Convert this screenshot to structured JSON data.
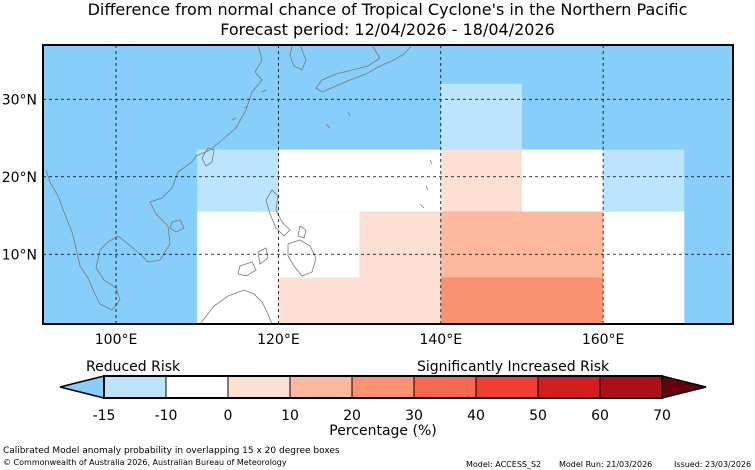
{
  "title_line1": "Difference from normal chance of Tropical Cyclone's in the Northern Pacific",
  "title_line2": "Forecast period: 12/04/2026 - 18/04/2026",
  "map": {
    "lon_range": [
      91,
      176
    ],
    "lat_range": [
      1,
      37
    ],
    "lon_ticks": [
      "100°E",
      "120°E",
      "140°E",
      "160°E"
    ],
    "lat_ticks": [
      "30°N",
      "20°N",
      "10°N"
    ],
    "ocean_color": "#87CEFA",
    "cells": [
      {
        "lon0": 140,
        "lon1": 150,
        "lat0": 23.5,
        "lat1": 32,
        "category": "-15 to -10",
        "color": "#BCE4FD"
      },
      {
        "lon0": 110,
        "lon1": 120,
        "lat0": 15.5,
        "lat1": 23.5,
        "category": "-15 to -10",
        "color": "#BCE4FD"
      },
      {
        "lon0": 160,
        "lon1": 170,
        "lat0": 15.5,
        "lat1": 23.5,
        "category": "-15 to -10",
        "color": "#BCE4FD"
      },
      {
        "lon0": 120,
        "lon1": 140,
        "lat0": 15.5,
        "lat1": 23.5,
        "category": "-10 to 0",
        "color": "#FFFFFF"
      },
      {
        "lon0": 150,
        "lon1": 160,
        "lat0": 15.5,
        "lat1": 23.5,
        "category": "-10 to 0",
        "color": "#FFFFFF"
      },
      {
        "lon0": 110,
        "lon1": 130,
        "lat0": 1,
        "lat1": 15.5,
        "category": "-10 to 0",
        "color": "#FFFFFF"
      },
      {
        "lon0": 130,
        "lon1": 140,
        "lat0": 7,
        "lat1": 15.5,
        "category": "0 to 10",
        "color": "#FEDFD4"
      },
      {
        "lon0": 160,
        "lon1": 170,
        "lat0": 1,
        "lat1": 15.5,
        "category": "-10 to 0",
        "color": "#FFFFFF"
      },
      {
        "lon0": 140,
        "lon1": 150,
        "lat0": 15.5,
        "lat1": 23.5,
        "category": "0 to 10",
        "color": "#FEDFD4"
      },
      {
        "lon0": 120,
        "lon1": 140,
        "lat0": 1,
        "lat1": 7,
        "category": "0 to 10",
        "color": "#FEDFD4"
      },
      {
        "lon0": 140,
        "lon1": 160,
        "lat0": 7,
        "lat1": 15.5,
        "category": "10 to 20",
        "color": "#FCB99E"
      },
      {
        "lon0": 140,
        "lon1": 160,
        "lat0": 1,
        "lat1": 7,
        "category": "20 to 30",
        "color": "#FB9272"
      }
    ]
  },
  "colorbar": {
    "reduced_label": "Reduced Risk",
    "increased_label": "Significantly Increased Risk",
    "xlabel": "Percentage (%)",
    "ticks": [
      "-15",
      "-10",
      "0",
      "10",
      "20",
      "30",
      "40",
      "50",
      "60",
      "70"
    ],
    "under_color": "#87CEFA",
    "over_color": "#67000D",
    "colors": [
      "#BCE4FD",
      "#FFFFFF",
      "#FEDFD4",
      "#FCB99E",
      "#FB9272",
      "#F6694F",
      "#EE3F32",
      "#D21E20",
      "#B00E17",
      "#A50F15"
    ]
  },
  "footer": {
    "line1": "Calibrated Model anomaly probability in overlapping 15 x 20 degree boxes",
    "line2": "© Commonwealth of Australia 2026, Australian Bureau of Meteorology",
    "model": "Model: ACCESS_S2",
    "run": "Model Run: 21/03/2026",
    "issued": "Issued: 23/03/2026"
  }
}
